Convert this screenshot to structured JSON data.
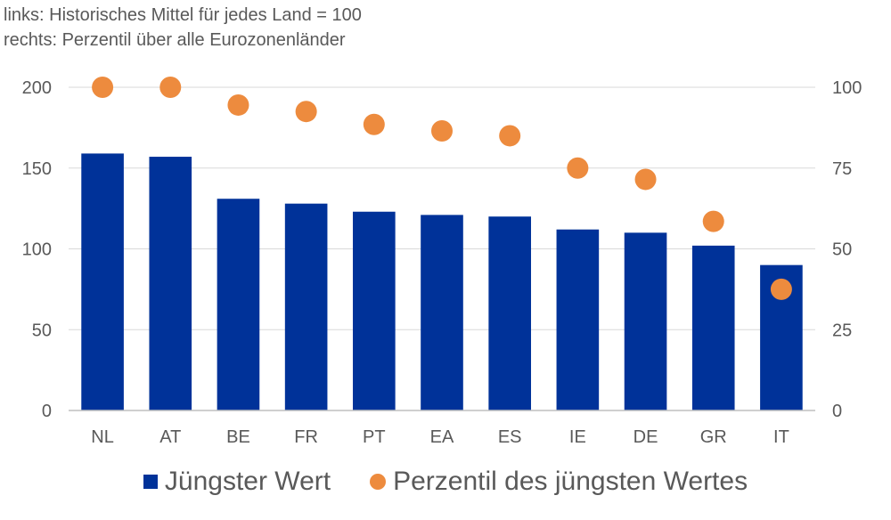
{
  "notes": {
    "left": "links: Historisches Mittel für jedes Land = 100",
    "right": "rechts: Perzentil über alle Eurozonenländer"
  },
  "chart_data": {
    "type": "bar",
    "title": "",
    "categories": [
      "NL",
      "AT",
      "BE",
      "FR",
      "PT",
      "EA",
      "ES",
      "IE",
      "DE",
      "GR",
      "IT"
    ],
    "series": [
      {
        "name": "Jüngster Wert",
        "type": "bar",
        "axis": "left",
        "color": "#003299",
        "values": [
          159,
          157,
          131,
          128,
          123,
          121,
          120,
          112,
          110,
          102,
          90
        ]
      },
      {
        "name": "Perzentil des jüngsten Wertes",
        "type": "scatter",
        "axis": "right",
        "color": "#ED8B3E",
        "values": [
          100,
          100,
          94.5,
          92.5,
          88.5,
          86.5,
          85,
          75,
          71.5,
          58.5,
          37.5
        ]
      }
    ],
    "y_left": {
      "ylim": [
        0,
        200
      ],
      "ticks": [
        0,
        50,
        100,
        150,
        200
      ]
    },
    "y_right": {
      "ylim": [
        0,
        100
      ],
      "ticks": [
        0,
        25,
        50,
        75,
        100
      ]
    },
    "grid": true,
    "legend": "bottom"
  }
}
